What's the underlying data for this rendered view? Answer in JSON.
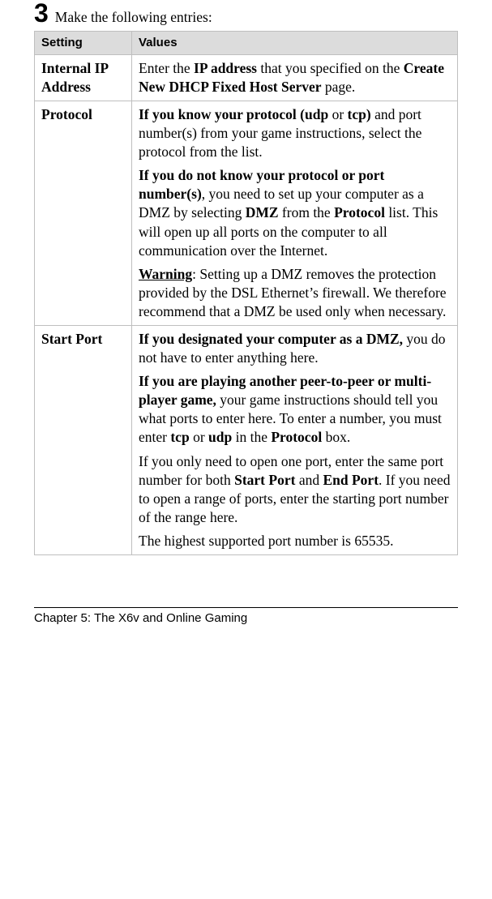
{
  "step": {
    "number": "3",
    "text": "Make the following entries:"
  },
  "table": {
    "headers": {
      "setting": "Setting",
      "values": "Values"
    },
    "rows": {
      "internal_ip": {
        "name": "Internal IP Address",
        "p1_pre": "Enter the ",
        "p1_b1": "IP address",
        "p1_mid": " that you specified on the ",
        "p1_b2": "Create New DHCP Fixed Host Server",
        "p1_post": " page."
      },
      "protocol": {
        "name": "Protocol",
        "p1_b": "If you know your protocol (udp",
        "p1_mid1": " or ",
        "p1_b2": "tcp)",
        "p1_rest": " and port number(s) from your game instructions, select the protocol from the list.",
        "p2_b1": "If you do not know your protocol or port number(s)",
        "p2_a": ", you need to set up your computer as a DMZ by selecting ",
        "p2_b2": "DMZ",
        "p2_b": " from the ",
        "p2_b3": "Protocol",
        "p2_c": " list. This will open up all ports on the computer to all communication over the Internet.",
        "p3_w": "Warning",
        "p3_rest": ": Setting up a DMZ removes the protection provided by the DSL Ethernet’s firewall. We therefore recommend that a DMZ be used only when necessary."
      },
      "start_port": {
        "name": "Start Port",
        "p1_b": "If you designated your computer as a DMZ,",
        "p1_rest": " you do not have to enter anything here.",
        "p2_b": "If you are playing another peer-to-peer or multi-player game,",
        "p2_a": " your game instructions should tell you what ports to enter here. To enter a number, you must enter ",
        "p2_b2": "tcp",
        "p2_c": " or ",
        "p2_b3": "udp",
        "p2_d": " in the ",
        "p2_b4": "Protocol",
        "p2_e": " box.",
        "p3_a": "If you only need to open one port, enter the same port number for both ",
        "p3_b1": "Start Port",
        "p3_b": " and ",
        "p3_b2": "End Port",
        "p3_c": ". If you need to open a range of ports, enter the starting port number of the range here.",
        "p4": "The highest supported port number is 65535."
      }
    }
  },
  "footer": "Chapter 5: The X6v and Online Gaming"
}
